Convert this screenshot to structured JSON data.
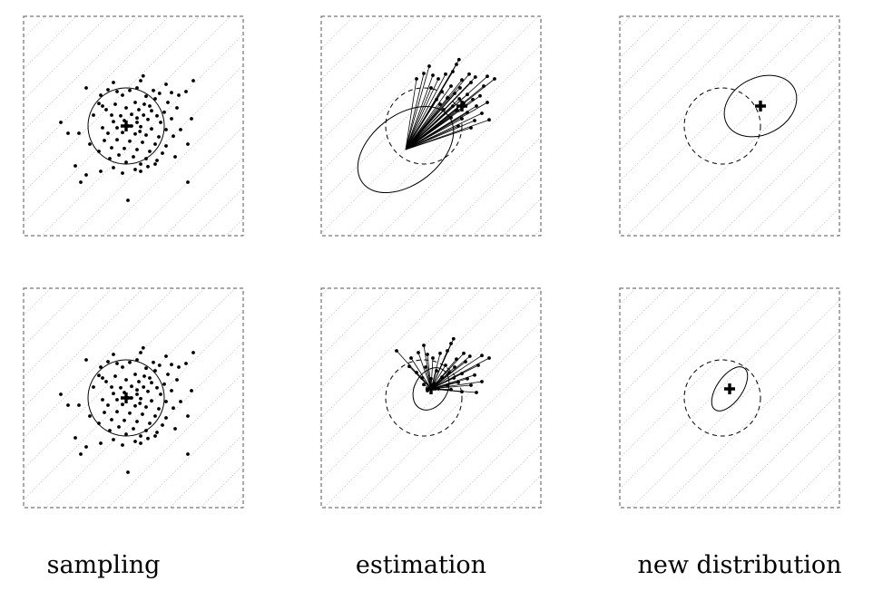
{
  "captions": {
    "sampling": "sampling",
    "estimation": "estimation",
    "new_distribution": "new distribution"
  },
  "colors": {
    "ink": "#000000",
    "frame": "#555555",
    "hatch": "#9a9a9a",
    "background": "#ffffff"
  },
  "icons": {
    "mean_marker": "bold-plus-icon",
    "sample_point": "dot-icon"
  },
  "rows": [
    {
      "samples": [
        [
          -0.55,
          1.2
        ],
        [
          0.2,
          1.25
        ],
        [
          0.27,
          1.38
        ],
        [
          -1.3,
          1.05
        ],
        [
          -0.7,
          1.0
        ],
        [
          -0.45,
          0.95
        ],
        [
          -0.1,
          0.98
        ],
        [
          0.1,
          1.05
        ],
        [
          0.55,
          0.98
        ],
        [
          0.72,
          0.9
        ],
        [
          1.05,
          0.92
        ],
        [
          1.25,
          0.85
        ],
        [
          -0.9,
          0.85
        ],
        [
          -0.3,
          0.85
        ],
        [
          0.35,
          0.82
        ],
        [
          0.6,
          0.75
        ],
        [
          0.95,
          0.65
        ],
        [
          -0.95,
          0.62
        ],
        [
          -0.5,
          0.6
        ],
        [
          0.05,
          0.65
        ],
        [
          0.3,
          0.6
        ],
        [
          -0.75,
          0.45
        ],
        [
          -0.2,
          0.5
        ],
        [
          0.15,
          0.45
        ],
        [
          0.5,
          0.42
        ],
        [
          0.85,
          0.38
        ],
        [
          -0.6,
          0.3
        ],
        [
          -0.35,
          0.28
        ],
        [
          -0.05,
          0.32
        ],
        [
          0.28,
          0.3
        ],
        [
          0.65,
          0.28
        ],
        [
          -0.55,
          0.12
        ],
        [
          -0.25,
          0.15
        ],
        [
          0.1,
          0.1
        ],
        [
          0.4,
          0.18
        ],
        [
          0.75,
          0.1
        ],
        [
          1.05,
          0.2
        ],
        [
          -0.45,
          -0.05
        ],
        [
          -0.15,
          0.0
        ],
        [
          0.2,
          -0.02
        ],
        [
          0.5,
          -0.08
        ],
        [
          0.9,
          -0.1
        ],
        [
          -0.7,
          -0.2
        ],
        [
          -0.3,
          -0.18
        ],
        [
          0.05,
          -0.22
        ],
        [
          0.35,
          -0.25
        ],
        [
          0.7,
          -0.3
        ],
        [
          1.1,
          -0.28
        ],
        [
          -0.8,
          -0.4
        ],
        [
          -0.45,
          -0.38
        ],
        [
          -0.1,
          -0.42
        ],
        [
          0.25,
          -0.45
        ],
        [
          0.6,
          -0.5
        ],
        [
          0.9,
          -0.55
        ],
        [
          -0.6,
          -0.6
        ],
        [
          -0.25,
          -0.62
        ],
        [
          0.1,
          -0.65
        ],
        [
          0.45,
          -0.7
        ],
        [
          0.8,
          -0.75
        ],
        [
          -0.4,
          -0.8
        ],
        [
          0.0,
          -0.85
        ],
        [
          0.35,
          -0.9
        ],
        [
          0.65,
          -0.95
        ],
        [
          -0.2,
          -1.0
        ],
        [
          0.2,
          -1.05
        ],
        [
          -0.55,
          -1.15
        ],
        [
          0.05,
          -1.2
        ],
        [
          0.4,
          -1.12
        ],
        [
          1.15,
          -0.85
        ],
        [
          1.5,
          -0.5
        ],
        [
          1.6,
          0.2
        ],
        [
          1.45,
          0.95
        ],
        [
          1.65,
          1.25
        ],
        [
          -1.2,
          -0.5
        ],
        [
          -1.5,
          -0.2
        ],
        [
          -1.1,
          0.3
        ],
        [
          -1.8,
          -0.2
        ],
        [
          -2.0,
          0.1
        ],
        [
          -1.6,
          -1.1
        ],
        [
          -1.3,
          -1.35
        ],
        [
          -0.9,
          -1.25
        ],
        [
          -0.3,
          -1.3
        ],
        [
          0.2,
          -1.25
        ],
        [
          1.5,
          -1.55
        ],
        [
          -0.15,
          -2.05
        ],
        [
          -1.45,
          -1.55
        ],
        [
          0.1,
          0.22
        ],
        [
          -0.05,
          0.0
        ],
        [
          0.18,
          -0.15
        ],
        [
          -0.85,
          -0.05
        ],
        [
          0.6,
          -1.05
        ],
        [
          1.2,
          0.5
        ],
        [
          0.9,
          1.15
        ],
        [
          -0.85,
          0.55
        ],
        [
          -0.65,
          -0.9
        ],
        [
          -0.95,
          -0.7
        ],
        [
          1.3,
          -0.1
        ],
        [
          0.45,
          0.55
        ]
      ],
      "estimate": {
        "mean": [
          0.85,
          0.55
        ],
        "ellipse": {
          "rx": 1.5,
          "ry": 0.95,
          "angle": 38
        },
        "center": [
          -0.7,
          -0.65
        ]
      },
      "new_distribution": {
        "mean": [
          0.85,
          0.55
        ],
        "ellipse": {
          "rx": 1.05,
          "ry": 0.78,
          "angle": 28
        }
      }
    },
    {
      "samples": [
        [
          -0.55,
          1.2
        ],
        [
          0.2,
          1.25
        ],
        [
          0.27,
          1.38
        ],
        [
          -1.3,
          1.05
        ],
        [
          -0.7,
          1.0
        ],
        [
          -0.45,
          0.95
        ],
        [
          -0.1,
          0.98
        ],
        [
          0.1,
          1.05
        ],
        [
          0.55,
          0.98
        ],
        [
          0.72,
          0.9
        ],
        [
          1.05,
          0.92
        ],
        [
          1.25,
          0.85
        ],
        [
          -0.9,
          0.85
        ],
        [
          -0.3,
          0.85
        ],
        [
          0.35,
          0.82
        ],
        [
          0.6,
          0.75
        ],
        [
          0.95,
          0.65
        ],
        [
          -0.95,
          0.62
        ],
        [
          -0.5,
          0.6
        ],
        [
          0.05,
          0.65
        ],
        [
          0.3,
          0.6
        ],
        [
          -0.75,
          0.45
        ],
        [
          -0.2,
          0.5
        ],
        [
          0.15,
          0.45
        ],
        [
          0.5,
          0.42
        ],
        [
          0.85,
          0.38
        ],
        [
          -0.6,
          0.3
        ],
        [
          -0.35,
          0.28
        ],
        [
          -0.05,
          0.32
        ],
        [
          0.28,
          0.3
        ],
        [
          0.65,
          0.28
        ],
        [
          -0.55,
          0.12
        ],
        [
          -0.25,
          0.15
        ],
        [
          0.1,
          0.1
        ],
        [
          0.4,
          0.18
        ],
        [
          0.75,
          0.1
        ],
        [
          1.05,
          0.2
        ],
        [
          -0.45,
          -0.05
        ],
        [
          -0.15,
          0.0
        ],
        [
          0.2,
          -0.02
        ],
        [
          0.5,
          -0.08
        ],
        [
          0.9,
          -0.1
        ],
        [
          -0.7,
          -0.2
        ],
        [
          -0.3,
          -0.18
        ],
        [
          0.05,
          -0.22
        ],
        [
          0.35,
          -0.25
        ],
        [
          0.7,
          -0.3
        ],
        [
          1.1,
          -0.28
        ],
        [
          -0.8,
          -0.4
        ],
        [
          -0.45,
          -0.38
        ],
        [
          -0.1,
          -0.42
        ],
        [
          0.25,
          -0.45
        ],
        [
          0.6,
          -0.5
        ],
        [
          0.9,
          -0.55
        ],
        [
          -0.6,
          -0.6
        ],
        [
          -0.25,
          -0.62
        ],
        [
          0.1,
          -0.65
        ],
        [
          0.45,
          -0.7
        ],
        [
          0.8,
          -0.75
        ],
        [
          -0.4,
          -0.8
        ],
        [
          0.0,
          -0.85
        ],
        [
          0.35,
          -0.9
        ],
        [
          0.65,
          -0.95
        ],
        [
          -0.2,
          -1.0
        ],
        [
          0.2,
          -1.05
        ],
        [
          -0.55,
          -1.15
        ],
        [
          0.05,
          -1.2
        ],
        [
          0.4,
          -1.12
        ],
        [
          1.15,
          -0.85
        ],
        [
          1.5,
          -0.5
        ],
        [
          1.6,
          0.2
        ],
        [
          1.45,
          0.95
        ],
        [
          1.65,
          1.25
        ],
        [
          -1.2,
          -0.5
        ],
        [
          -1.5,
          -0.2
        ],
        [
          -1.1,
          0.3
        ],
        [
          -1.8,
          -0.2
        ],
        [
          -2.0,
          0.1
        ],
        [
          -1.6,
          -1.1
        ],
        [
          -1.3,
          -1.35
        ],
        [
          -0.9,
          -1.25
        ],
        [
          -0.3,
          -1.3
        ],
        [
          0.2,
          -1.25
        ],
        [
          1.5,
          -1.55
        ],
        [
          -0.15,
          -2.05
        ],
        [
          -1.45,
          -1.55
        ],
        [
          0.1,
          0.22
        ],
        [
          -0.05,
          0.0
        ],
        [
          0.18,
          -0.15
        ],
        [
          -0.85,
          -0.05
        ],
        [
          0.6,
          -1.05
        ],
        [
          1.2,
          0.5
        ],
        [
          0.9,
          1.15
        ],
        [
          -0.85,
          0.55
        ],
        [
          -0.65,
          -0.9
        ],
        [
          -0.95,
          -0.7
        ],
        [
          1.3,
          -0.1
        ],
        [
          0.45,
          0.55
        ]
      ],
      "estimate": {
        "mean": [
          0.0,
          0.25
        ],
        "ellipse": {
          "rx": 0.62,
          "ry": 0.45,
          "angle": 60
        },
        "center": [
          0.0,
          0.25
        ]
      },
      "new_distribution": {
        "mean": [
          0.0,
          0.25
        ],
        "ellipse": {
          "rx": 0.7,
          "ry": 0.35,
          "angle": 55
        }
      }
    }
  ]
}
